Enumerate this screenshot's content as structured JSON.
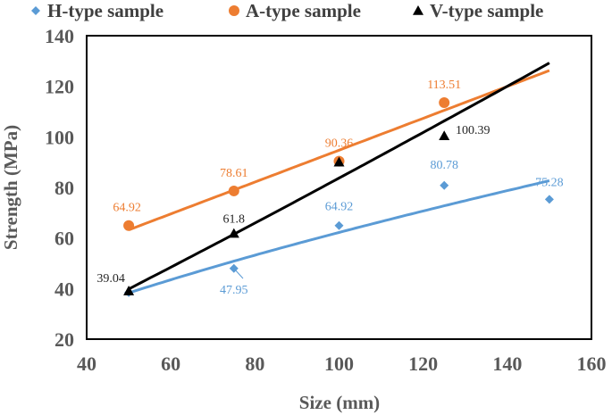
{
  "chart_data": {
    "type": "scatter",
    "xlabel": "Size (mm)",
    "ylabel": "Strength (MPa)",
    "xlim": [
      40,
      160
    ],
    "ylim": [
      20,
      140
    ],
    "x_ticks": [
      40,
      60,
      80,
      100,
      120,
      140,
      160
    ],
    "y_ticks": [
      20,
      40,
      60,
      80,
      100,
      120,
      140
    ],
    "x_tick_labels": [
      "40",
      "60",
      "80",
      "100",
      "120",
      "140",
      "160"
    ],
    "y_tick_labels": [
      "20",
      "40",
      "60",
      "80",
      "100",
      "120",
      "140"
    ],
    "legend_position": "top",
    "grid": false,
    "series": [
      {
        "name": "H-type sample",
        "color": "#5B9BD5",
        "marker": "diamond",
        "x": [
          50,
          75,
          100,
          125,
          150
        ],
        "y": [
          38.4,
          47.95,
          64.92,
          80.78,
          75.28
        ],
        "labels": [
          "",
          "47.95",
          "64.92",
          "80.78",
          "75.28"
        ],
        "trend": "power",
        "trend_range": [
          50,
          150
        ]
      },
      {
        "name": "A-type sample",
        "color": "#ED7D31",
        "marker": "circle",
        "x": [
          50,
          75,
          100,
          125
        ],
        "y": [
          64.92,
          78.61,
          90.36,
          113.51
        ],
        "labels": [
          "64.92",
          "78.61",
          "90.36",
          "113.51"
        ],
        "trend": "linear",
        "trend_range": [
          50,
          150
        ]
      },
      {
        "name": "V-type sample",
        "color": "#000000",
        "marker": "triangle",
        "x": [
          50,
          75,
          100,
          125
        ],
        "y": [
          39.04,
          61.8,
          90.0,
          100.39
        ],
        "labels": [
          "39.04",
          "61.8",
          "",
          "100.39"
        ],
        "trend": "power",
        "trend_range": [
          50,
          150
        ]
      }
    ]
  }
}
